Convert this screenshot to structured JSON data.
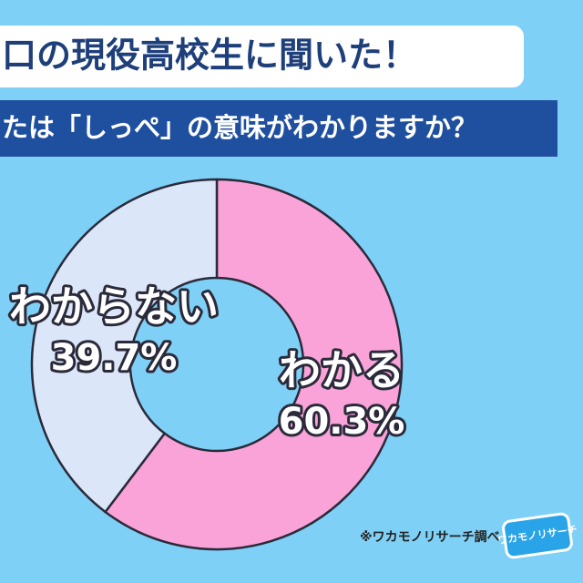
{
  "chart_data": {
    "type": "pie",
    "title": "口の現役高校生に聞いた！",
    "subtitle": "たは「しっぺ」の意味がわかりますか？",
    "categories": [
      "わかる",
      "わからない"
    ],
    "values": [
      60.3,
      39.7
    ],
    "value_labels": [
      "60.3%",
      "39.7%"
    ],
    "colors": [
      "#f9a3d9",
      "#dce6f9"
    ],
    "source": "※ワカモノリサーチ調べ",
    "logo": "ワカモノリサーチ"
  }
}
